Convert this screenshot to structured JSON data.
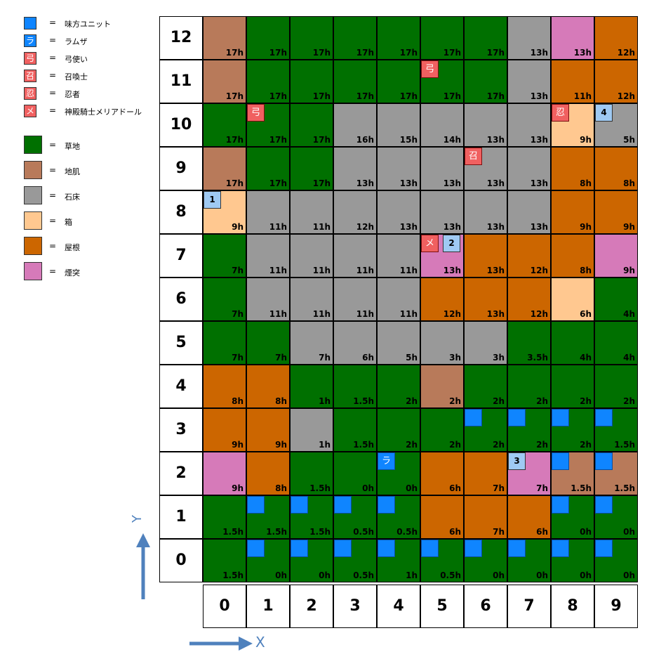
{
  "legend": {
    "units": [
      {
        "glyph": "",
        "type": "ally",
        "label": "味方ユニット"
      },
      {
        "glyph": "ラ",
        "type": "ramza",
        "label": "ラムザ"
      },
      {
        "glyph": "弓",
        "type": "enemy",
        "label": "弓使い"
      },
      {
        "glyph": "召",
        "type": "enemy",
        "label": "召喚士"
      },
      {
        "glyph": "忍",
        "type": "enemy",
        "label": "忍者"
      },
      {
        "glyph": "メ",
        "type": "enemy",
        "label": "神殿騎士メリアドール"
      }
    ],
    "terrains": [
      {
        "key": "G",
        "label": "草地"
      },
      {
        "key": "D",
        "label": "地肌"
      },
      {
        "key": "S",
        "label": "石床"
      },
      {
        "key": "B",
        "label": "箱"
      },
      {
        "key": "R",
        "label": "屋根"
      },
      {
        "key": "C",
        "label": "煙突"
      }
    ],
    "eq": "="
  },
  "colors": {
    "G": "#007000",
    "D": "#b87a5a",
    "S": "#999999",
    "B": "#ffc890",
    "R": "#cc6600",
    "C": "#d67ab9"
  },
  "x_labels": [
    "0",
    "1",
    "2",
    "3",
    "4",
    "5",
    "6",
    "7",
    "8",
    "9"
  ],
  "y_labels": [
    "0",
    "1",
    "2",
    "3",
    "4",
    "5",
    "6",
    "7",
    "8",
    "9",
    "10",
    "11",
    "12"
  ],
  "axis_labels": {
    "x": "X",
    "y": "Y"
  },
  "grid": [
    {
      "y": 12,
      "cells": [
        [
          "D",
          "17h"
        ],
        [
          "G",
          "17h"
        ],
        [
          "G",
          "17h"
        ],
        [
          "G",
          "17h"
        ],
        [
          "G",
          "17h"
        ],
        [
          "G",
          "17h"
        ],
        [
          "G",
          "17h"
        ],
        [
          "S",
          "13h"
        ],
        [
          "C",
          "13h"
        ],
        [
          "R",
          "12h"
        ]
      ]
    },
    {
      "y": 11,
      "cells": [
        [
          "D",
          "17h"
        ],
        [
          "G",
          "17h"
        ],
        [
          "G",
          "17h"
        ],
        [
          "G",
          "17h"
        ],
        [
          "G",
          "17h"
        ],
        [
          "G",
          "17h"
        ],
        [
          "G",
          "17h"
        ],
        [
          "S",
          "13h"
        ],
        [
          "R",
          "11h"
        ],
        [
          "R",
          "12h"
        ]
      ]
    },
    {
      "y": 10,
      "cells": [
        [
          "G",
          "17h"
        ],
        [
          "G",
          "17h"
        ],
        [
          "G",
          "17h"
        ],
        [
          "S",
          "16h"
        ],
        [
          "S",
          "15h"
        ],
        [
          "S",
          "14h"
        ],
        [
          "S",
          "13h"
        ],
        [
          "S",
          "13h"
        ],
        [
          "B",
          "9h"
        ],
        [
          "S",
          "5h"
        ]
      ]
    },
    {
      "y": 9,
      "cells": [
        [
          "D",
          "17h"
        ],
        [
          "G",
          "17h"
        ],
        [
          "G",
          "17h"
        ],
        [
          "S",
          "13h"
        ],
        [
          "S",
          "13h"
        ],
        [
          "S",
          "13h"
        ],
        [
          "S",
          "13h"
        ],
        [
          "S",
          "13h"
        ],
        [
          "R",
          "8h"
        ],
        [
          "R",
          "8h"
        ]
      ]
    },
    {
      "y": 8,
      "cells": [
        [
          "B",
          "9h"
        ],
        [
          "S",
          "11h"
        ],
        [
          "S",
          "11h"
        ],
        [
          "S",
          "12h"
        ],
        [
          "S",
          "13h"
        ],
        [
          "S",
          "13h"
        ],
        [
          "S",
          "13h"
        ],
        [
          "S",
          "13h"
        ],
        [
          "R",
          "9h"
        ],
        [
          "R",
          "9h"
        ]
      ]
    },
    {
      "y": 7,
      "cells": [
        [
          "G",
          "7h"
        ],
        [
          "S",
          "11h"
        ],
        [
          "S",
          "11h"
        ],
        [
          "S",
          "11h"
        ],
        [
          "S",
          "11h"
        ],
        [
          "C",
          "13h"
        ],
        [
          "R",
          "13h"
        ],
        [
          "R",
          "12h"
        ],
        [
          "R",
          "8h"
        ],
        [
          "C",
          "9h"
        ]
      ]
    },
    {
      "y": 6,
      "cells": [
        [
          "G",
          "7h"
        ],
        [
          "S",
          "11h"
        ],
        [
          "S",
          "11h"
        ],
        [
          "S",
          "11h"
        ],
        [
          "S",
          "11h"
        ],
        [
          "R",
          "12h"
        ],
        [
          "R",
          "13h"
        ],
        [
          "R",
          "12h"
        ],
        [
          "B",
          "6h"
        ],
        [
          "G",
          "4h"
        ]
      ]
    },
    {
      "y": 5,
      "cells": [
        [
          "G",
          "7h"
        ],
        [
          "G",
          "7h"
        ],
        [
          "S",
          "7h"
        ],
        [
          "S",
          "6h"
        ],
        [
          "S",
          "5h"
        ],
        [
          "S",
          "3h"
        ],
        [
          "S",
          "3h"
        ],
        [
          "G",
          "3.5h"
        ],
        [
          "G",
          "4h"
        ],
        [
          "G",
          "4h"
        ]
      ]
    },
    {
      "y": 4,
      "cells": [
        [
          "R",
          "8h"
        ],
        [
          "R",
          "8h"
        ],
        [
          "G",
          "1h"
        ],
        [
          "G",
          "1.5h"
        ],
        [
          "G",
          "2h"
        ],
        [
          "D",
          "2h"
        ],
        [
          "G",
          "2h"
        ],
        [
          "G",
          "2h"
        ],
        [
          "G",
          "2h"
        ],
        [
          "G",
          "2h"
        ]
      ]
    },
    {
      "y": 3,
      "cells": [
        [
          "R",
          "9h"
        ],
        [
          "R",
          "9h"
        ],
        [
          "S",
          "1h"
        ],
        [
          "G",
          "1.5h"
        ],
        [
          "G",
          "2h"
        ],
        [
          "G",
          "2h"
        ],
        [
          "G",
          "2h"
        ],
        [
          "G",
          "2h"
        ],
        [
          "G",
          "2h"
        ],
        [
          "G",
          "1.5h"
        ]
      ]
    },
    {
      "y": 2,
      "cells": [
        [
          "C",
          "9h"
        ],
        [
          "R",
          "8h"
        ],
        [
          "G",
          "1.5h"
        ],
        [
          "G",
          "0h"
        ],
        [
          "G",
          "0h"
        ],
        [
          "R",
          "6h"
        ],
        [
          "R",
          "7h"
        ],
        [
          "C",
          "7h"
        ],
        [
          "D",
          "1.5h"
        ],
        [
          "D",
          "1.5h"
        ]
      ]
    },
    {
      "y": 1,
      "cells": [
        [
          "G",
          "1.5h"
        ],
        [
          "G",
          "1.5h"
        ],
        [
          "G",
          "1.5h"
        ],
        [
          "G",
          "0.5h"
        ],
        [
          "G",
          "0.5h"
        ],
        [
          "R",
          "6h"
        ],
        [
          "R",
          "7h"
        ],
        [
          "R",
          "6h"
        ],
        [
          "G",
          "0h"
        ],
        [
          "G",
          "0h"
        ]
      ]
    },
    {
      "y": 0,
      "cells": [
        [
          "G",
          "1.5h"
        ],
        [
          "G",
          "0h"
        ],
        [
          "G",
          "0h"
        ],
        [
          "G",
          "0.5h"
        ],
        [
          "G",
          "1h"
        ],
        [
          "G",
          "0.5h"
        ],
        [
          "G",
          "0h"
        ],
        [
          "G",
          "0h"
        ],
        [
          "G",
          "0h"
        ],
        [
          "G",
          "0h"
        ]
      ]
    }
  ],
  "units": [
    {
      "x": 5,
      "y": 11,
      "type": "enemy",
      "glyph": "弓",
      "name": "archer-unit"
    },
    {
      "x": 1,
      "y": 10,
      "type": "enemy",
      "glyph": "弓",
      "name": "archer-unit"
    },
    {
      "x": 8,
      "y": 10,
      "type": "enemy",
      "glyph": "忍",
      "name": "ninja-unit"
    },
    {
      "x": 9,
      "y": 10,
      "type": "num",
      "glyph": "4",
      "name": "ally-start-4"
    },
    {
      "x": 6,
      "y": 9,
      "type": "enemy",
      "glyph": "召",
      "name": "summoner-unit"
    },
    {
      "x": 0,
      "y": 8,
      "type": "num",
      "glyph": "1",
      "name": "ally-start-1"
    },
    {
      "x": 5,
      "y": 7,
      "type": "enemy",
      "glyph": "メ",
      "name": "meliadoul-unit"
    },
    {
      "x": 5,
      "y": 7,
      "type": "num",
      "glyph": "2",
      "name": "ally-start-2",
      "slot": 1
    },
    {
      "x": 6,
      "y": 3,
      "type": "ally",
      "glyph": "",
      "name": "ally-unit"
    },
    {
      "x": 7,
      "y": 3,
      "type": "ally",
      "glyph": "",
      "name": "ally-unit"
    },
    {
      "x": 8,
      "y": 3,
      "type": "ally",
      "glyph": "",
      "name": "ally-unit"
    },
    {
      "x": 9,
      "y": 3,
      "type": "ally",
      "glyph": "",
      "name": "ally-unit"
    },
    {
      "x": 4,
      "y": 2,
      "type": "ramza",
      "glyph": "ラ",
      "name": "ramza-unit"
    },
    {
      "x": 7,
      "y": 2,
      "type": "num",
      "glyph": "3",
      "name": "ally-start-3"
    },
    {
      "x": 8,
      "y": 2,
      "type": "ally",
      "glyph": "",
      "name": "ally-unit"
    },
    {
      "x": 9,
      "y": 2,
      "type": "ally",
      "glyph": "",
      "name": "ally-unit"
    },
    {
      "x": 1,
      "y": 1,
      "type": "ally",
      "glyph": "",
      "name": "ally-unit"
    },
    {
      "x": 2,
      "y": 1,
      "type": "ally",
      "glyph": "",
      "name": "ally-unit"
    },
    {
      "x": 3,
      "y": 1,
      "type": "ally",
      "glyph": "",
      "name": "ally-unit"
    },
    {
      "x": 4,
      "y": 1,
      "type": "ally",
      "glyph": "",
      "name": "ally-unit"
    },
    {
      "x": 8,
      "y": 1,
      "type": "ally",
      "glyph": "",
      "name": "ally-unit"
    },
    {
      "x": 9,
      "y": 1,
      "type": "ally",
      "glyph": "",
      "name": "ally-unit"
    },
    {
      "x": 1,
      "y": 0,
      "type": "ally",
      "glyph": "",
      "name": "ally-unit"
    },
    {
      "x": 2,
      "y": 0,
      "type": "ally",
      "glyph": "",
      "name": "ally-unit"
    },
    {
      "x": 3,
      "y": 0,
      "type": "ally",
      "glyph": "",
      "name": "ally-unit"
    },
    {
      "x": 4,
      "y": 0,
      "type": "ally",
      "glyph": "",
      "name": "ally-unit"
    },
    {
      "x": 5,
      "y": 0,
      "type": "ally",
      "glyph": "",
      "name": "ally-unit"
    },
    {
      "x": 6,
      "y": 0,
      "type": "ally",
      "glyph": "",
      "name": "ally-unit"
    },
    {
      "x": 7,
      "y": 0,
      "type": "ally",
      "glyph": "",
      "name": "ally-unit"
    },
    {
      "x": 8,
      "y": 0,
      "type": "ally",
      "glyph": "",
      "name": "ally-unit"
    },
    {
      "x": 9,
      "y": 0,
      "type": "ally",
      "glyph": "",
      "name": "ally-unit"
    }
  ]
}
